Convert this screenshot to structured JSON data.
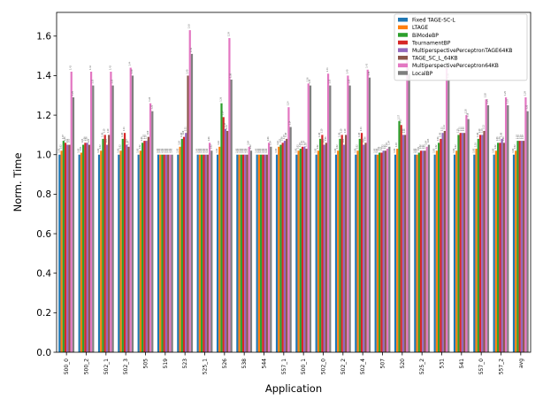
{
  "chart_data": {
    "type": "bar",
    "xlabel": "Application",
    "ylabel": "Norm. Time",
    "ylim": [
      0.0,
      1.72
    ],
    "yticks": [
      "0.0",
      "0.2",
      "0.4",
      "0.6",
      "0.8",
      "1.0",
      "1.2",
      "1.4",
      "1.6"
    ],
    "legend_position": "top-right",
    "categories": [
      "500_0",
      "500_2",
      "502_1",
      "502_3",
      "505",
      "519",
      "523",
      "525_1",
      "526",
      "538",
      "544",
      "557_1",
      "500_1",
      "502_0",
      "502_2",
      "502_4",
      "507",
      "520",
      "525_2",
      "531",
      "541",
      "557_0",
      "557_2",
      "avg"
    ],
    "series": [
      {
        "name": "Fixed TAGE-SC-L",
        "color": "#1f77b4",
        "values": [
          1.0,
          1.0,
          1.0,
          1.0,
          1.0,
          1.0,
          1.0,
          1.0,
          1.0,
          1.0,
          1.0,
          1.0,
          1.0,
          1.0,
          1.0,
          1.0,
          1.0,
          1.0,
          1.0,
          1.0,
          1.0,
          1.0,
          1.0,
          1.0
        ]
      },
      {
        "name": "LTAGE",
        "color": "#ff7f0e",
        "values": [
          1.02,
          1.01,
          1.02,
          1.02,
          1.02,
          1.0,
          1.04,
          1.0,
          1.04,
          1.0,
          1.0,
          1.04,
          1.02,
          1.02,
          1.02,
          1.02,
          1.0,
          1.03,
          1.0,
          1.02,
          1.02,
          1.03,
          1.02,
          1.02
        ]
      },
      {
        "name": "BiModeBP",
        "color": "#2ca02c",
        "values": [
          1.07,
          1.05,
          1.08,
          1.08,
          1.06,
          1.0,
          1.08,
          1.0,
          1.26,
          1.0,
          1.0,
          1.05,
          1.03,
          1.08,
          1.08,
          1.08,
          1.01,
          1.17,
          1.01,
          1.06,
          1.1,
          1.08,
          1.06,
          1.07
        ]
      },
      {
        "name": "TournamentBP",
        "color": "#d62728",
        "values": [
          1.06,
          1.06,
          1.1,
          1.11,
          1.07,
          1.0,
          1.09,
          1.0,
          1.19,
          1.0,
          1.0,
          1.06,
          1.04,
          1.1,
          1.1,
          1.11,
          1.01,
          1.15,
          1.02,
          1.08,
          1.11,
          1.1,
          1.06,
          1.07
        ]
      },
      {
        "name": "MultiperspectivePerceptronTAGE64KB",
        "color": "#9467bd",
        "values": [
          1.05,
          1.06,
          1.05,
          1.05,
          1.07,
          1.0,
          1.11,
          1.0,
          1.13,
          1.0,
          1.0,
          1.07,
          1.04,
          1.05,
          1.05,
          1.05,
          1.02,
          1.1,
          1.02,
          1.11,
          1.11,
          1.1,
          1.08,
          1.07
        ]
      },
      {
        "name": "TAGE_SC_L_64KB",
        "color": "#8c564b",
        "values": [
          1.05,
          1.05,
          1.1,
          1.04,
          1.09,
          1.0,
          1.4,
          1.0,
          1.12,
          1.0,
          1.0,
          1.08,
          1.03,
          1.06,
          1.1,
          1.06,
          1.02,
          1.1,
          1.02,
          1.12,
          1.11,
          1.12,
          1.06,
          1.07
        ]
      },
      {
        "name": "MultiperspectivePerceptron64KB",
        "color": "#e377c2",
        "values": [
          1.42,
          1.42,
          1.42,
          1.44,
          1.26,
          1.0,
          1.63,
          1.06,
          1.59,
          1.04,
          1.06,
          1.24,
          1.36,
          1.41,
          1.4,
          1.43,
          1.03,
          1.52,
          1.04,
          1.44,
          1.2,
          1.28,
          1.29,
          1.29
        ]
      },
      {
        "name": "LocalBP",
        "color": "#7f7f7f",
        "values": [
          1.29,
          1.35,
          1.35,
          1.4,
          1.22,
          1.0,
          1.51,
          1.02,
          1.38,
          1.02,
          1.04,
          1.14,
          1.35,
          1.35,
          1.35,
          1.39,
          1.04,
          1.41,
          1.05,
          1.38,
          1.18,
          1.25,
          1.25,
          1.22
        ]
      }
    ]
  }
}
